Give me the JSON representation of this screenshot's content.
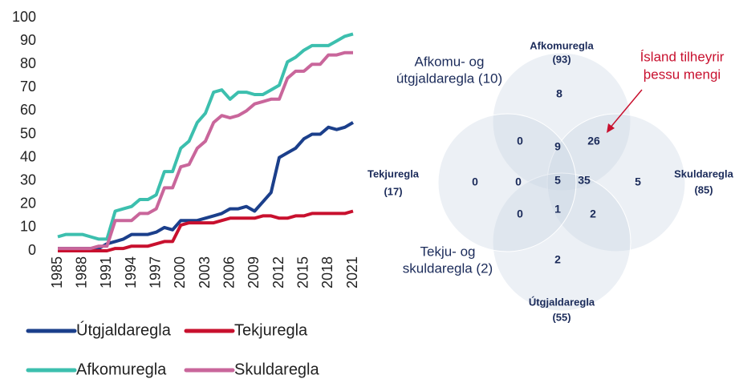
{
  "chart_data": [
    {
      "type": "line",
      "x": [
        1985,
        1986,
        1987,
        1988,
        1989,
        1990,
        1991,
        1992,
        1993,
        1994,
        1995,
        1996,
        1997,
        1998,
        1999,
        2000,
        2001,
        2002,
        2003,
        2004,
        2005,
        2006,
        2007,
        2008,
        2009,
        2010,
        2011,
        2012,
        2013,
        2014,
        2015,
        2016,
        2017,
        2018,
        2019,
        2020,
        2021
      ],
      "xlim": [
        1985,
        2021
      ],
      "xticks": [
        1985,
        1988,
        1991,
        1994,
        1997,
        2000,
        2003,
        2006,
        2009,
        2012,
        2015,
        2018,
        2021
      ],
      "ylim": [
        0,
        100
      ],
      "yticks": [
        0,
        10,
        20,
        30,
        40,
        50,
        60,
        70,
        80,
        90,
        100
      ],
      "grid": false,
      "legend": "bottom",
      "series": [
        {
          "name": "Útgjaldaregla",
          "color": "#1b3f8b",
          "values": [
            1,
            1,
            1,
            1,
            1,
            1,
            3,
            4,
            5,
            7,
            7,
            7,
            8,
            10,
            9,
            13,
            13,
            13,
            14,
            15,
            16,
            18,
            18,
            19,
            17,
            21,
            25,
            40,
            42,
            44,
            48,
            50,
            50,
            53,
            52,
            53,
            55
          ]
        },
        {
          "name": "Tekjuregla",
          "color": "#c8102e",
          "values": [
            0,
            0,
            0,
            0,
            0,
            0,
            0,
            1,
            1,
            2,
            2,
            2,
            3,
            4,
            4,
            11,
            12,
            12,
            12,
            12,
            13,
            14,
            14,
            14,
            14,
            15,
            15,
            14,
            14,
            15,
            15,
            16,
            16,
            16,
            16,
            16,
            17
          ]
        },
        {
          "name": "Afkomuregla",
          "color": "#3cbfae",
          "values": [
            6,
            7,
            7,
            7,
            6,
            5,
            5,
            17,
            18,
            19,
            22,
            22,
            24,
            34,
            34,
            44,
            47,
            55,
            59,
            68,
            69,
            65,
            68,
            68,
            67,
            67,
            69,
            71,
            81,
            83,
            86,
            88,
            88,
            88,
            90,
            92,
            93
          ]
        },
        {
          "name": "Skuldaregla",
          "color": "#c9669b",
          "values": [
            1,
            1,
            1,
            1,
            1,
            2,
            2,
            13,
            13,
            13,
            16,
            16,
            18,
            27,
            27,
            36,
            37,
            44,
            47,
            55,
            58,
            57,
            58,
            60,
            63,
            64,
            65,
            65,
            74,
            77,
            77,
            80,
            80,
            84,
            84,
            85,
            85
          ]
        }
      ]
    },
    {
      "type": "venn",
      "sets": [
        {
          "name": "Afkomuregla",
          "count": "(93)"
        },
        {
          "name": "Skuldaregla",
          "count": "(85)"
        },
        {
          "name": "Útgjaldaregla",
          "count": "(55)"
        },
        {
          "name": "Tekjuregla",
          "count": "(17)"
        }
      ],
      "regions": [
        8,
        0,
        9,
        26,
        0,
        0,
        5,
        35,
        5,
        0,
        1,
        2,
        2
      ],
      "pair_labels": [
        [
          "Afkomu- og",
          "útgjaldaregla (10)"
        ],
        [
          "Tekju- og",
          "skuldaregla (2)"
        ]
      ],
      "annotation": [
        "Ísland tilheyrir",
        "þessu mengi"
      ]
    }
  ]
}
